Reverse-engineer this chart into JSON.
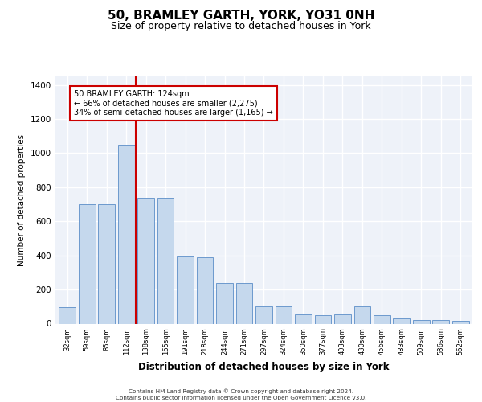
{
  "title": "50, BRAMLEY GARTH, YORK, YO31 0NH",
  "subtitle": "Size of property relative to detached houses in York",
  "xlabel": "Distribution of detached houses by size in York",
  "ylabel": "Number of detached properties",
  "categories": [
    "32sqm",
    "59sqm",
    "85sqm",
    "112sqm",
    "138sqm",
    "165sqm",
    "191sqm",
    "218sqm",
    "244sqm",
    "271sqm",
    "297sqm",
    "324sqm",
    "350sqm",
    "377sqm",
    "403sqm",
    "430sqm",
    "456sqm",
    "483sqm",
    "509sqm",
    "536sqm",
    "562sqm"
  ],
  "values": [
    95,
    700,
    700,
    1050,
    740,
    740,
    395,
    390,
    240,
    240,
    100,
    100,
    55,
    50,
    55,
    100,
    50,
    30,
    20,
    20,
    15
  ],
  "bar_color": "#c5d8ed",
  "bar_edge_color": "#5b8dc8",
  "vline_color": "#cc0000",
  "annotation_box_color": "#cc0000",
  "ylim": [
    0,
    1450
  ],
  "yticks": [
    0,
    200,
    400,
    600,
    800,
    1000,
    1200,
    1400
  ],
  "footer_line1": "Contains HM Land Registry data © Crown copyright and database right 2024.",
  "footer_line2": "Contains public sector information licensed under the Open Government Licence v3.0.",
  "background_color": "#eef2f9",
  "grid_color": "#ffffff",
  "title_fontsize": 11,
  "subtitle_fontsize": 9,
  "property_label": "50 BRAMLEY GARTH: 124sqm",
  "annotation_line1": "← 66% of detached houses are smaller (2,275)",
  "annotation_line2": "34% of semi-detached houses are larger (1,165) →"
}
